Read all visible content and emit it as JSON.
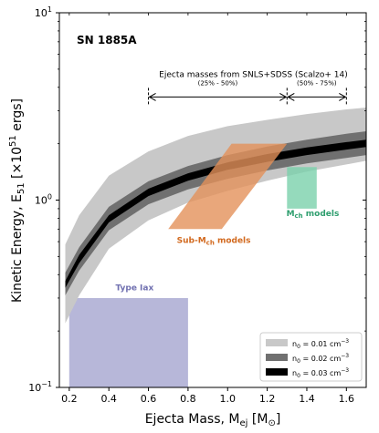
{
  "chart_data": {
    "type": "area",
    "title": "SN 1885A",
    "xlabel": "Ejecta Mass, M",
    "xlabel_sub": "ej",
    "xlabel_unit_open": " [M",
    "xlabel_unit_sub": "⊙",
    "xlabel_unit_close": "]",
    "ylabel": "Kinetic Energy, E",
    "ylabel_sub": "51",
    "ylabel_unit": " [×10",
    "ylabel_unit_sup": "51",
    "ylabel_unit_end": " ergs]",
    "xlim": [
      0.15,
      1.7
    ],
    "ylim": [
      0.1,
      10
    ],
    "yscale": "log",
    "xticks": [
      0.2,
      0.4,
      0.6,
      0.8,
      1.0,
      1.2,
      1.4,
      1.6
    ],
    "xtick_labels": [
      "0.2",
      "0.4",
      "0.6",
      "0.8",
      "1.0",
      "1.2",
      "1.4",
      "1.6"
    ],
    "yticks": [
      0.1,
      1,
      10
    ],
    "ytick_labels": [
      {
        "base": "10",
        "exp": "−1"
      },
      {
        "base": "10",
        "exp": "0"
      },
      {
        "base": "10",
        "exp": "1"
      }
    ],
    "grid": false,
    "legend_position": "bottom-right",
    "bands": [
      {
        "name_prefix": "n",
        "name_sub": "0",
        "name_value": " = 0.01 cm",
        "name_exp": "−3",
        "color": "#c8c8c8",
        "x": [
          0.18,
          0.25,
          0.4,
          0.6,
          0.8,
          1.0,
          1.2,
          1.4,
          1.6,
          1.7
        ],
        "lower": [
          0.22,
          0.31,
          0.55,
          0.78,
          0.97,
          1.12,
          1.27,
          1.42,
          1.55,
          1.62
        ],
        "upper": [
          0.58,
          0.83,
          1.35,
          1.82,
          2.2,
          2.48,
          2.68,
          2.88,
          3.05,
          3.12
        ]
      },
      {
        "name_prefix": "n",
        "name_sub": "0",
        "name_value": " = 0.02 cm",
        "name_exp": "−3",
        "color": "#707070",
        "x": [
          0.18,
          0.25,
          0.4,
          0.6,
          0.8,
          1.0,
          1.2,
          1.4,
          1.6,
          1.7
        ],
        "lower": [
          0.31,
          0.42,
          0.69,
          0.95,
          1.14,
          1.3,
          1.44,
          1.57,
          1.68,
          1.74
        ],
        "upper": [
          0.41,
          0.56,
          0.92,
          1.26,
          1.52,
          1.74,
          1.93,
          2.1,
          2.26,
          2.33
        ]
      },
      {
        "name_prefix": "n",
        "name_sub": "0",
        "name_value": " = 0.03 cm",
        "name_exp": "−3",
        "color": "#000000",
        "x": [
          0.18,
          0.25,
          0.4,
          0.6,
          0.8,
          1.0,
          1.2,
          1.4,
          1.6,
          1.7
        ],
        "lower": [
          0.34,
          0.46,
          0.76,
          1.05,
          1.27,
          1.45,
          1.6,
          1.74,
          1.86,
          1.92
        ],
        "upper": [
          0.37,
          0.51,
          0.83,
          1.15,
          1.39,
          1.59,
          1.76,
          1.91,
          2.04,
          2.1
        ]
      }
    ],
    "regions": [
      {
        "label": "Type Iax",
        "color": "#aaaad2",
        "label_color": "#7070b0",
        "polygon": [
          [
            0.2,
            0.1
          ],
          [
            0.8,
            0.1
          ],
          [
            0.8,
            0.3
          ],
          [
            0.2,
            0.3
          ]
        ],
        "label_at": [
          0.53,
          0.33
        ]
      },
      {
        "label": "Sub-M",
        "label_sub": "ch",
        "label_rest": " models",
        "color": "#e3915a",
        "label_color": "#d2691e",
        "polygon": [
          [
            0.7,
            0.7
          ],
          [
            1.02,
            2.0
          ],
          [
            1.3,
            2.0
          ],
          [
            0.97,
            0.7
          ]
        ],
        "label_at": [
          0.93,
          0.59
        ]
      },
      {
        "label": "M",
        "label_sub": "ch",
        "label_rest": " models",
        "color": "#7ad1ab",
        "label_color": "#2e9e6e",
        "polygon": [
          [
            1.3,
            0.9
          ],
          [
            1.45,
            0.9
          ],
          [
            1.45,
            1.5
          ],
          [
            1.3,
            1.5
          ]
        ],
        "label_at": [
          1.43,
          0.82
        ]
      }
    ],
    "annotations": {
      "bracket_title": "Ejecta masses from SNLS+SDSS (Scalzo+ 14)",
      "bracket_y": 3.55,
      "bracket_title_at": [
        1.13,
        4.55
      ],
      "dashed_markers_x": [
        0.6,
        1.3,
        1.6
      ],
      "range_low": {
        "x": [
          0.6,
          1.3
        ],
        "label": "(25% - 50%)",
        "label_at": [
          0.95,
          4.1
        ]
      },
      "range_high": {
        "x": [
          1.3,
          1.6
        ],
        "label": "(50% - 75%)",
        "label_at": [
          1.45,
          4.1
        ]
      }
    }
  }
}
